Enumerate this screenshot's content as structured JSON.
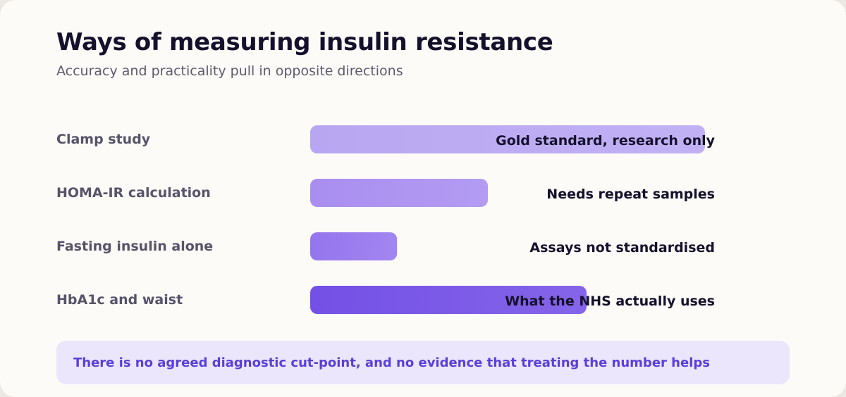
{
  "chart_data": {
    "type": "bar",
    "orientation": "horizontal",
    "title": "Ways of measuring insulin resistance",
    "subtitle": "Accuracy and practicality pull in opposite directions",
    "categories": [
      "Clamp study",
      "HOMA-IR calculation",
      "Fasting insulin alone",
      "HbA1c and waist"
    ],
    "values": [
      100,
      45,
      22,
      70
    ],
    "annotations": [
      "Gold standard, research only",
      "Needs repeat samples",
      "Assays not standardised",
      "What the NHS actually uses"
    ],
    "xlim": [
      0,
      100
    ],
    "grid": false,
    "legend": "none",
    "bar_colors": [
      "#b9a6f2",
      "#a98ef0",
      "#9575ee",
      "#7450e6"
    ]
  },
  "callout": {
    "text": "There is no agreed diagnostic cut-point, and no evidence that treating the number helps"
  },
  "colors": {
    "background": "#fdfbf7",
    "title": "#15112c",
    "label": "#57536a",
    "callout_bg": "#ebe6fb",
    "callout_text": "#5a3fd8"
  }
}
